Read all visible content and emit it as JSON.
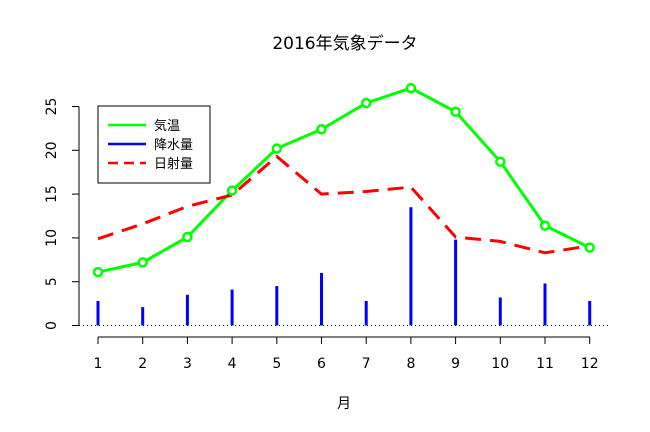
{
  "chart_data": {
    "type": "line",
    "title": "2016年気象データ",
    "xlabel": "月",
    "ylabel": "",
    "categories": [
      "1",
      "2",
      "3",
      "4",
      "5",
      "6",
      "7",
      "8",
      "9",
      "10",
      "11",
      "12"
    ],
    "ylim": [
      0,
      25
    ],
    "yticks": [
      0,
      5,
      10,
      15,
      20,
      25
    ],
    "grid": false,
    "legend_position": "top-left",
    "series": [
      {
        "name": "気温",
        "type": "line",
        "color": "#00ff00",
        "style": "solid",
        "markers": "open-circle",
        "values": [
          6.1,
          7.2,
          10.1,
          15.4,
          20.2,
          22.4,
          25.4,
          27.1,
          24.4,
          18.7,
          11.4,
          8.9
        ]
      },
      {
        "name": "降水量",
        "type": "bar",
        "color": "#0000ff",
        "style": "solid",
        "values": [
          2.8,
          2.1,
          3.5,
          4.1,
          4.5,
          6.0,
          2.8,
          13.5,
          9.8,
          3.2,
          4.8,
          2.8
        ]
      },
      {
        "name": "日射量",
        "type": "line",
        "color": "#ff0000",
        "style": "dashed",
        "values": [
          9.9,
          11.6,
          13.6,
          14.9,
          19.3,
          15.0,
          15.3,
          15.8,
          10.1,
          9.6,
          8.3,
          9.1
        ]
      }
    ]
  }
}
